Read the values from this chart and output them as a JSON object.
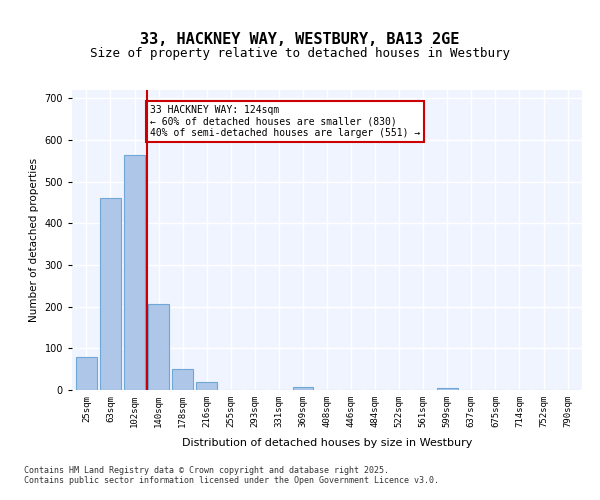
{
  "title1": "33, HACKNEY WAY, WESTBURY, BA13 2GE",
  "title2": "Size of property relative to detached houses in Westbury",
  "xlabel": "Distribution of detached houses by size in Westbury",
  "ylabel": "Number of detached properties",
  "categories": [
    "25sqm",
    "63sqm",
    "102sqm",
    "140sqm",
    "178sqm",
    "216sqm",
    "255sqm",
    "293sqm",
    "331sqm",
    "369sqm",
    "408sqm",
    "446sqm",
    "484sqm",
    "522sqm",
    "561sqm",
    "599sqm",
    "637sqm",
    "675sqm",
    "714sqm",
    "752sqm",
    "790sqm"
  ],
  "values": [
    80,
    460,
    565,
    207,
    50,
    20,
    0,
    0,
    0,
    7,
    0,
    0,
    0,
    0,
    0,
    5,
    0,
    0,
    0,
    0,
    0
  ],
  "bar_color": "#aec6e8",
  "bar_edge_color": "#6fa8d6",
  "annotation_box_text": "33 HACKNEY WAY: 124sqm\n← 60% of detached houses are smaller (830)\n40% of semi-detached houses are larger (551) →",
  "annotation_box_color": "#cc0000",
  "vline_x_index": 2.5,
  "vline_color": "#cc0000",
  "background_color": "#f0f4ff",
  "grid_color": "#ffffff",
  "footer_text": "Contains HM Land Registry data © Crown copyright and database right 2025.\nContains public sector information licensed under the Open Government Licence v3.0.",
  "ylim": [
    0,
    720
  ],
  "yticks": [
    0,
    100,
    200,
    300,
    400,
    500,
    600,
    700
  ]
}
